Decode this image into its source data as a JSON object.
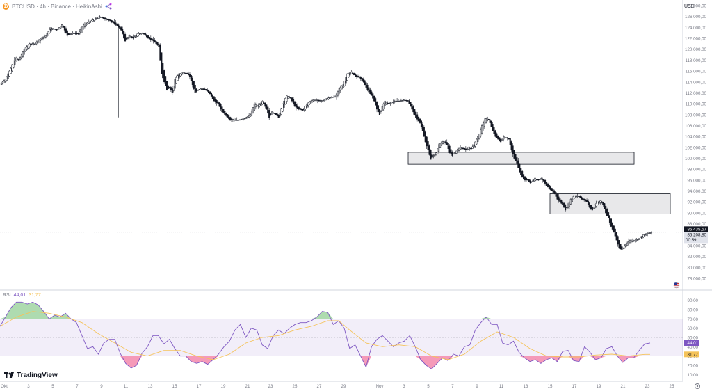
{
  "header": {
    "coin_glyph": "₿",
    "symbol": "BTCUSD · 4h · Binance · HeikinAshi",
    "icon": "links-icon"
  },
  "currency": "USD",
  "main_price_axis": {
    "ticks": [
      "128.000,00",
      "126.000,00",
      "124.000,00",
      "122.000,00",
      "120.000,00",
      "118.000,00",
      "116.000,00",
      "114.000,00",
      "112.000,00",
      "110.000,00",
      "108.000,00",
      "106.000,00",
      "104.000,00",
      "102.000,00",
      "100.000,00",
      "98.000,00",
      "96.000,00",
      "94.000,00",
      "92.000,00",
      "90.000,00",
      "88.000,00",
      "86.000,00",
      "84.000,00",
      "82.000,00",
      "80.000,00",
      "78.000,00"
    ]
  },
  "price_labels": {
    "last": "86.435,57",
    "secondary": "86.208,80",
    "countdown": "00:59"
  },
  "rsi": {
    "label": "RSI",
    "value1": "44,01",
    "value2": "31,77",
    "ticks": [
      "90,00",
      "80,00",
      "70,00",
      "60,00",
      "50,00",
      "40,00",
      "30,00",
      "20,00",
      "10,00"
    ],
    "badge_rsi": "44,01",
    "badge_ma": "31,77",
    "line_color": "#7e57c2",
    "ma_color": "#f5c35a"
  },
  "time_axis": {
    "labels": [
      "Okt",
      "3",
      "5",
      "7",
      "9",
      "11",
      "13",
      "15",
      "17",
      "19",
      "21",
      "23",
      "25",
      "27",
      "29",
      "Nov",
      "3",
      "5",
      "7",
      "9",
      "11",
      "13",
      "15",
      "17",
      "19",
      "21",
      "23",
      "25"
    ]
  },
  "branding": "TradingView",
  "chart_data": {
    "type": "candlestick",
    "ylim": [
      78000,
      129000
    ],
    "zones": [
      {
        "low": 98900,
        "high": 101100
      },
      {
        "low": 89800,
        "high": 93500
      }
    ],
    "close_path": [
      [
        0,
        113500
      ],
      [
        4,
        114500
      ],
      [
        8,
        116500
      ],
      [
        11,
        118500
      ],
      [
        14,
        118000
      ],
      [
        18,
        120000
      ],
      [
        22,
        121000
      ],
      [
        26,
        121000
      ],
      [
        30,
        122000
      ],
      [
        34,
        122500
      ],
      [
        38,
        124000
      ],
      [
        42,
        123500
      ],
      [
        46,
        124500
      ],
      [
        50,
        122500
      ],
      [
        54,
        123000
      ],
      [
        58,
        122800
      ],
      [
        62,
        124500
      ],
      [
        66,
        125000
      ],
      [
        70,
        125500
      ],
      [
        74,
        126000
      ],
      [
        78,
        125500
      ],
      [
        82,
        125200
      ],
      [
        86,
        124500
      ],
      [
        90,
        123500
      ],
      [
        93,
        121500
      ],
      [
        96,
        122500
      ],
      [
        99,
        122000
      ],
      [
        102,
        122800
      ],
      [
        106,
        123000
      ],
      [
        110,
        122000
      ],
      [
        114,
        121500
      ],
      [
        118,
        120500
      ],
      [
        120,
        115500
      ],
      [
        122,
        114000
      ],
      [
        124,
        112500
      ],
      [
        126,
        113000
      ],
      [
        128,
        112000
      ],
      [
        130,
        114500
      ],
      [
        133,
        115500
      ],
      [
        136,
        115700
      ],
      [
        139,
        115500
      ],
      [
        141,
        115000
      ],
      [
        143,
        113500
      ],
      [
        145,
        112000
      ],
      [
        147,
        112500
      ],
      [
        150,
        112800
      ],
      [
        153,
        112500
      ],
      [
        156,
        111800
      ],
      [
        159,
        110500
      ],
      [
        162,
        110000
      ],
      [
        165,
        108500
      ],
      [
        168,
        107800
      ],
      [
        171,
        107000
      ],
      [
        174,
        107000
      ],
      [
        177,
        107000
      ],
      [
        180,
        107200
      ],
      [
        183,
        107500
      ],
      [
        186,
        108000
      ],
      [
        189,
        110000
      ],
      [
        192,
        109500
      ],
      [
        195,
        110500
      ],
      [
        198,
        109000
      ],
      [
        200,
        107500
      ],
      [
        202,
        108500
      ],
      [
        205,
        108000
      ],
      [
        207,
        107500
      ],
      [
        210,
        110000
      ],
      [
        213,
        111500
      ],
      [
        216,
        111000
      ],
      [
        219,
        109500
      ],
      [
        222,
        109000
      ],
      [
        225,
        108800
      ],
      [
        228,
        110000
      ],
      [
        231,
        110500
      ],
      [
        234,
        110800
      ],
      [
        237,
        110500
      ],
      [
        240,
        110600
      ],
      [
        243,
        111000
      ],
      [
        246,
        111200
      ],
      [
        249,
        111300
      ],
      [
        252,
        112800
      ],
      [
        255,
        113500
      ],
      [
        258,
        115500
      ],
      [
        261,
        115800
      ],
      [
        264,
        115000
      ],
      [
        267,
        114800
      ],
      [
        270,
        114000
      ],
      [
        273,
        112500
      ],
      [
        276,
        111500
      ],
      [
        278,
        110500
      ],
      [
        280,
        109000
      ],
      [
        282,
        108000
      ],
      [
        284,
        109500
      ],
      [
        286,
        110500
      ],
      [
        288,
        110000
      ],
      [
        291,
        110300
      ],
      [
        294,
        110500
      ],
      [
        297,
        110500
      ],
      [
        300,
        110700
      ],
      [
        303,
        110500
      ],
      [
        306,
        109000
      ],
      [
        309,
        107500
      ],
      [
        312,
        106500
      ],
      [
        314,
        105000
      ],
      [
        316,
        103000
      ],
      [
        318,
        101500
      ],
      [
        320,
        99800
      ],
      [
        322,
        100500
      ],
      [
        324,
        101000
      ],
      [
        326,
        102500
      ],
      [
        328,
        103000
      ],
      [
        330,
        103200
      ],
      [
        332,
        102500
      ],
      [
        334,
        101000
      ],
      [
        336,
        100500
      ],
      [
        338,
        101000
      ],
      [
        340,
        101700
      ],
      [
        342,
        102000
      ],
      [
        344,
        101800
      ],
      [
        346,
        101500
      ],
      [
        348,
        102000
      ],
      [
        350,
        101700
      ],
      [
        352,
        102500
      ],
      [
        354,
        103500
      ],
      [
        356,
        104500
      ],
      [
        358,
        106000
      ],
      [
        360,
        107000
      ],
      [
        362,
        107500
      ],
      [
        364,
        106500
      ],
      [
        366,
        105000
      ],
      [
        368,
        104000
      ],
      [
        370,
        103500
      ],
      [
        372,
        103000
      ],
      [
        374,
        104000
      ],
      [
        376,
        103800
      ],
      [
        378,
        103500
      ],
      [
        380,
        101500
      ],
      [
        382,
        100000
      ],
      [
        384,
        99000
      ],
      [
        386,
        97500
      ],
      [
        388,
        96500
      ],
      [
        390,
        96000
      ],
      [
        392,
        96000
      ],
      [
        394,
        95500
      ],
      [
        396,
        96000
      ],
      [
        398,
        96200
      ],
      [
        400,
        96000
      ],
      [
        402,
        96300
      ],
      [
        404,
        95800
      ],
      [
        406,
        95000
      ],
      [
        408,
        94500
      ],
      [
        410,
        94000
      ],
      [
        412,
        93500
      ],
      [
        414,
        92500
      ],
      [
        416,
        92000
      ],
      [
        418,
        91500
      ],
      [
        420,
        90500
      ],
      [
        422,
        91500
      ],
      [
        424,
        92500
      ],
      [
        426,
        93000
      ],
      [
        428,
        93200
      ],
      [
        430,
        93000
      ],
      [
        432,
        92500
      ],
      [
        434,
        92300
      ],
      [
        436,
        92000
      ],
      [
        438,
        91000
      ],
      [
        440,
        90500
      ],
      [
        442,
        91500
      ],
      [
        444,
        92000
      ],
      [
        446,
        92200
      ],
      [
        448,
        91500
      ],
      [
        450,
        90000
      ],
      [
        452,
        89000
      ],
      [
        454,
        87500
      ],
      [
        456,
        86500
      ],
      [
        458,
        85000
      ],
      [
        460,
        83500
      ],
      [
        462,
        83200
      ],
      [
        464,
        84000
      ],
      [
        466,
        84500
      ],
      [
        468,
        85000
      ],
      [
        470,
        84800
      ],
      [
        472,
        85000
      ],
      [
        474,
        85200
      ],
      [
        476,
        85500
      ],
      [
        478,
        86000
      ],
      [
        480,
        86200
      ],
      [
        482,
        86300
      ],
      [
        484,
        86436
      ]
    ],
    "rsi_path": [
      [
        0,
        62
      ],
      [
        4,
        72
      ],
      [
        8,
        82
      ],
      [
        12,
        88
      ],
      [
        16,
        88
      ],
      [
        20,
        86
      ],
      [
        24,
        88
      ],
      [
        28,
        85
      ],
      [
        32,
        78
      ],
      [
        36,
        70
      ],
      [
        40,
        74
      ],
      [
        44,
        72
      ],
      [
        48,
        76
      ],
      [
        52,
        70
      ],
      [
        56,
        66
      ],
      [
        60,
        52
      ],
      [
        64,
        38
      ],
      [
        68,
        40
      ],
      [
        72,
        32
      ],
      [
        76,
        44
      ],
      [
        80,
        48
      ],
      [
        84,
        48
      ],
      [
        88,
        33
      ],
      [
        92,
        22
      ],
      [
        96,
        17
      ],
      [
        100,
        20
      ],
      [
        104,
        33
      ],
      [
        108,
        40
      ],
      [
        112,
        52
      ],
      [
        116,
        52
      ],
      [
        120,
        43
      ],
      [
        124,
        48
      ],
      [
        128,
        38
      ],
      [
        132,
        30
      ],
      [
        136,
        30
      ],
      [
        140,
        24
      ],
      [
        144,
        22
      ],
      [
        148,
        24
      ],
      [
        152,
        21
      ],
      [
        156,
        26
      ],
      [
        160,
        32
      ],
      [
        164,
        40
      ],
      [
        168,
        46
      ],
      [
        172,
        58
      ],
      [
        176,
        64
      ],
      [
        180,
        50
      ],
      [
        184,
        60
      ],
      [
        188,
        58
      ],
      [
        192,
        42
      ],
      [
        196,
        38
      ],
      [
        200,
        52
      ],
      [
        204,
        58
      ],
      [
        208,
        54
      ],
      [
        212,
        60
      ],
      [
        216,
        64
      ],
      [
        220,
        66
      ],
      [
        224,
        66
      ],
      [
        228,
        68
      ],
      [
        232,
        72
      ],
      [
        236,
        78
      ],
      [
        240,
        77
      ],
      [
        244,
        64
      ],
      [
        248,
        68
      ],
      [
        252,
        60
      ],
      [
        256,
        38
      ],
      [
        260,
        42
      ],
      [
        264,
        30
      ],
      [
        268,
        18
      ],
      [
        272,
        40
      ],
      [
        276,
        48
      ],
      [
        280,
        52
      ],
      [
        284,
        46
      ],
      [
        288,
        40
      ],
      [
        292,
        44
      ],
      [
        296,
        46
      ],
      [
        300,
        52
      ],
      [
        304,
        40
      ],
      [
        308,
        26
      ],
      [
        312,
        20
      ],
      [
        316,
        16
      ],
      [
        320,
        22
      ],
      [
        324,
        28
      ],
      [
        328,
        25
      ],
      [
        332,
        32
      ],
      [
        336,
        30
      ],
      [
        340,
        40
      ],
      [
        344,
        42
      ],
      [
        348,
        58
      ],
      [
        352,
        66
      ],
      [
        356,
        72
      ],
      [
        360,
        64
      ],
      [
        364,
        64
      ],
      [
        368,
        44
      ],
      [
        372,
        42
      ],
      [
        376,
        46
      ],
      [
        380,
        34
      ],
      [
        384,
        28
      ],
      [
        388,
        24
      ],
      [
        392,
        26
      ],
      [
        396,
        22
      ],
      [
        400,
        26
      ],
      [
        404,
        28
      ],
      [
        408,
        24
      ],
      [
        412,
        35
      ],
      [
        416,
        36
      ],
      [
        420,
        25
      ],
      [
        424,
        24
      ],
      [
        428,
        40
      ],
      [
        432,
        34
      ],
      [
        436,
        26
      ],
      [
        440,
        28
      ],
      [
        444,
        38
      ],
      [
        448,
        40
      ],
      [
        452,
        30
      ],
      [
        456,
        23
      ],
      [
        460,
        28
      ],
      [
        464,
        28
      ],
      [
        468,
        36
      ],
      [
        472,
        43
      ],
      [
        476,
        44.01
      ]
    ],
    "rsi_ma_path": [
      [
        0,
        62
      ],
      [
        12,
        72
      ],
      [
        24,
        78
      ],
      [
        36,
        76
      ],
      [
        48,
        72
      ],
      [
        60,
        66
      ],
      [
        72,
        54
      ],
      [
        84,
        44
      ],
      [
        96,
        34
      ],
      [
        108,
        30
      ],
      [
        120,
        36
      ],
      [
        132,
        36
      ],
      [
        144,
        30
      ],
      [
        156,
        26
      ],
      [
        168,
        32
      ],
      [
        180,
        44
      ],
      [
        192,
        50
      ],
      [
        204,
        52
      ],
      [
        216,
        58
      ],
      [
        228,
        62
      ],
      [
        240,
        68
      ],
      [
        248,
        68
      ],
      [
        256,
        58
      ],
      [
        268,
        44
      ],
      [
        280,
        40
      ],
      [
        292,
        42
      ],
      [
        304,
        40
      ],
      [
        316,
        30
      ],
      [
        328,
        26
      ],
      [
        340,
        32
      ],
      [
        352,
        46
      ],
      [
        364,
        56
      ],
      [
        376,
        50
      ],
      [
        388,
        38
      ],
      [
        400,
        30
      ],
      [
        412,
        29
      ],
      [
        424,
        29
      ],
      [
        436,
        31
      ],
      [
        448,
        32
      ],
      [
        460,
        30
      ],
      [
        472,
        31.77
      ],
      [
        476,
        31.77
      ]
    ],
    "rsi_levels": {
      "upper": 70,
      "mid": 50,
      "lower": 30
    }
  }
}
